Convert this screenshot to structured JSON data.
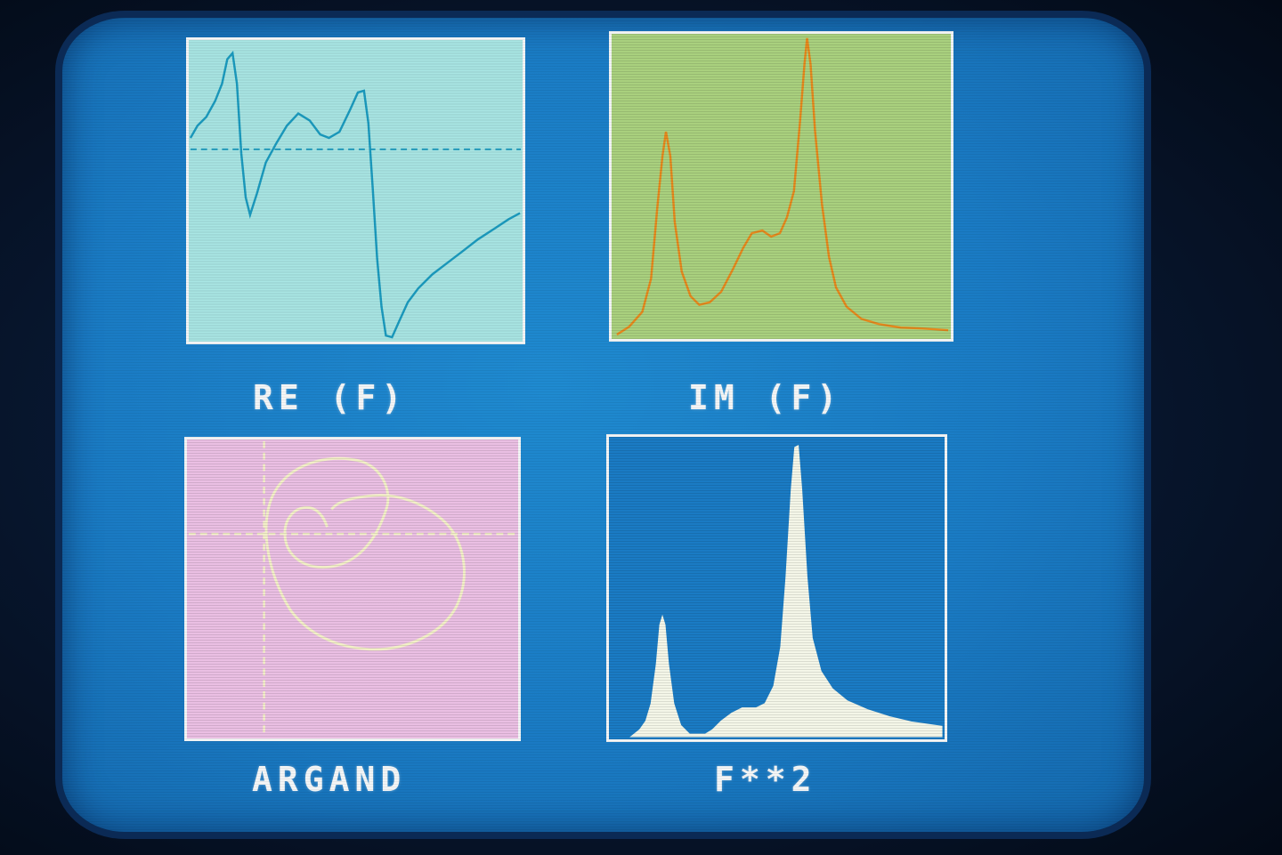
{
  "screen": {
    "background_color": "#1a7bc4",
    "panel_border_color": "#f2f4f5"
  },
  "panels": [
    {
      "id": "re",
      "caption": "RE (F)",
      "background": "#a9e6e4",
      "curve_color": "#1b9cc0"
    },
    {
      "id": "im",
      "caption": "IM (F)",
      "background": "#a9d07e",
      "curve_color": "#e68a1e"
    },
    {
      "id": "argand",
      "caption": "ARGAND",
      "background": "#eabfe3",
      "curve_color": "#f3f0c8"
    },
    {
      "id": "f2",
      "caption": "F**2",
      "background": "#1a7bc4",
      "curve_color": "#f4f6e8"
    }
  ]
}
